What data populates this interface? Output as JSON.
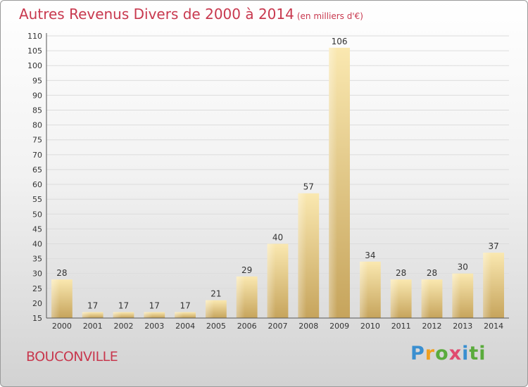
{
  "title": "Autres Revenus Divers de 2000 à 2014",
  "subtitle": "(en milliers d'€)",
  "town": "BOUCONVILLE",
  "logo": [
    "P",
    "r",
    "o",
    "x",
    "i",
    "ti"
  ],
  "colors": {
    "title": "#c8384e",
    "bar_light": "#f8e4a8",
    "bar_dark": "#c8a860"
  },
  "chart_data": {
    "type": "bar",
    "title": "Autres Revenus Divers de 2000 à 2014",
    "subtitle": "(en milliers d'€)",
    "categories": [
      "2000",
      "2001",
      "2002",
      "2003",
      "2004",
      "2005",
      "2006",
      "2007",
      "2008",
      "2009",
      "2010",
      "2011",
      "2012",
      "2013",
      "2014"
    ],
    "values": [
      28,
      17,
      17,
      17,
      17,
      21,
      29,
      40,
      57,
      106,
      34,
      28,
      28,
      30,
      37
    ],
    "ylim": [
      15,
      110
    ],
    "yticks": [
      15,
      20,
      25,
      30,
      35,
      40,
      45,
      50,
      55,
      60,
      65,
      70,
      75,
      80,
      85,
      90,
      95,
      100,
      105,
      110
    ],
    "grid": true,
    "xlabel": "",
    "ylabel": ""
  }
}
